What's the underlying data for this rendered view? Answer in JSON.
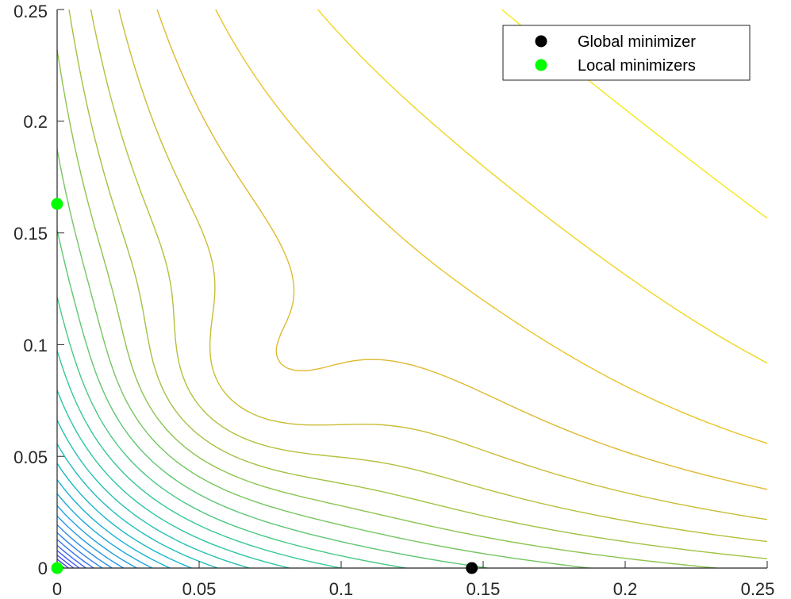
{
  "chart_data": {
    "type": "contour",
    "title": "",
    "xlabel": "",
    "ylabel": "",
    "xlim": [
      0,
      0.25
    ],
    "ylim": [
      0,
      0.25
    ],
    "x_ticks": [
      "0",
      "0.05",
      "0.1",
      "0.15",
      "0.2",
      "0.25"
    ],
    "y_ticks": [
      "0",
      "0.05",
      "0.1",
      "0.15",
      "0.2",
      "0.25"
    ],
    "x_tick_values": [
      0,
      0.05,
      0.1,
      0.15,
      0.2,
      0.25
    ],
    "y_tick_values": [
      0,
      0.05,
      0.1,
      0.15,
      0.2,
      0.25
    ],
    "grid": false,
    "legend_position": "top-right",
    "colormap": "parula",
    "series": [
      {
        "name": "Global minimizer",
        "color": "#000000",
        "points": [
          [
            0.146,
            0.0
          ]
        ]
      },
      {
        "name": "Local minimizers",
        "color": "#00ff00",
        "points": [
          [
            0.0,
            0.163
          ],
          [
            0.0,
            0.0
          ]
        ]
      }
    ]
  }
}
